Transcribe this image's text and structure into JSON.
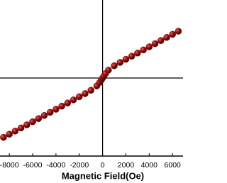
{
  "chart_data": {
    "type": "scatter",
    "x_label": "Magnetic Field(Oe)",
    "x": [
      -8500,
      -8000,
      -7500,
      -7000,
      -6500,
      -6000,
      -5500,
      -5000,
      -4500,
      -4000,
      -3500,
      -3000,
      -2500,
      -2000,
      -1500,
      -1000,
      -500,
      -250,
      -100,
      0,
      100,
      250,
      500,
      1000,
      1500,
      2000,
      2500,
      3000,
      3500,
      4000,
      4500,
      5000,
      5500,
      6000,
      6500
    ],
    "values": [
      -0.76,
      -0.72,
      -0.68,
      -0.64,
      -0.6,
      -0.56,
      -0.52,
      -0.48,
      -0.44,
      -0.4,
      -0.36,
      -0.32,
      -0.28,
      -0.24,
      -0.2,
      -0.157,
      -0.101,
      -0.057,
      -0.024,
      0,
      0.024,
      0.057,
      0.101,
      0.157,
      0.2,
      0.24,
      0.28,
      0.32,
      0.36,
      0.4,
      0.44,
      0.48,
      0.52,
      0.56,
      0.6
    ],
    "color": "#8b0a0a",
    "xlim": [
      -8800,
      6900
    ],
    "xticks": [
      -8000,
      -6000,
      -4000,
      -2000,
      0,
      2000,
      4000,
      6000
    ],
    "ylim": [
      -1,
      1
    ]
  }
}
